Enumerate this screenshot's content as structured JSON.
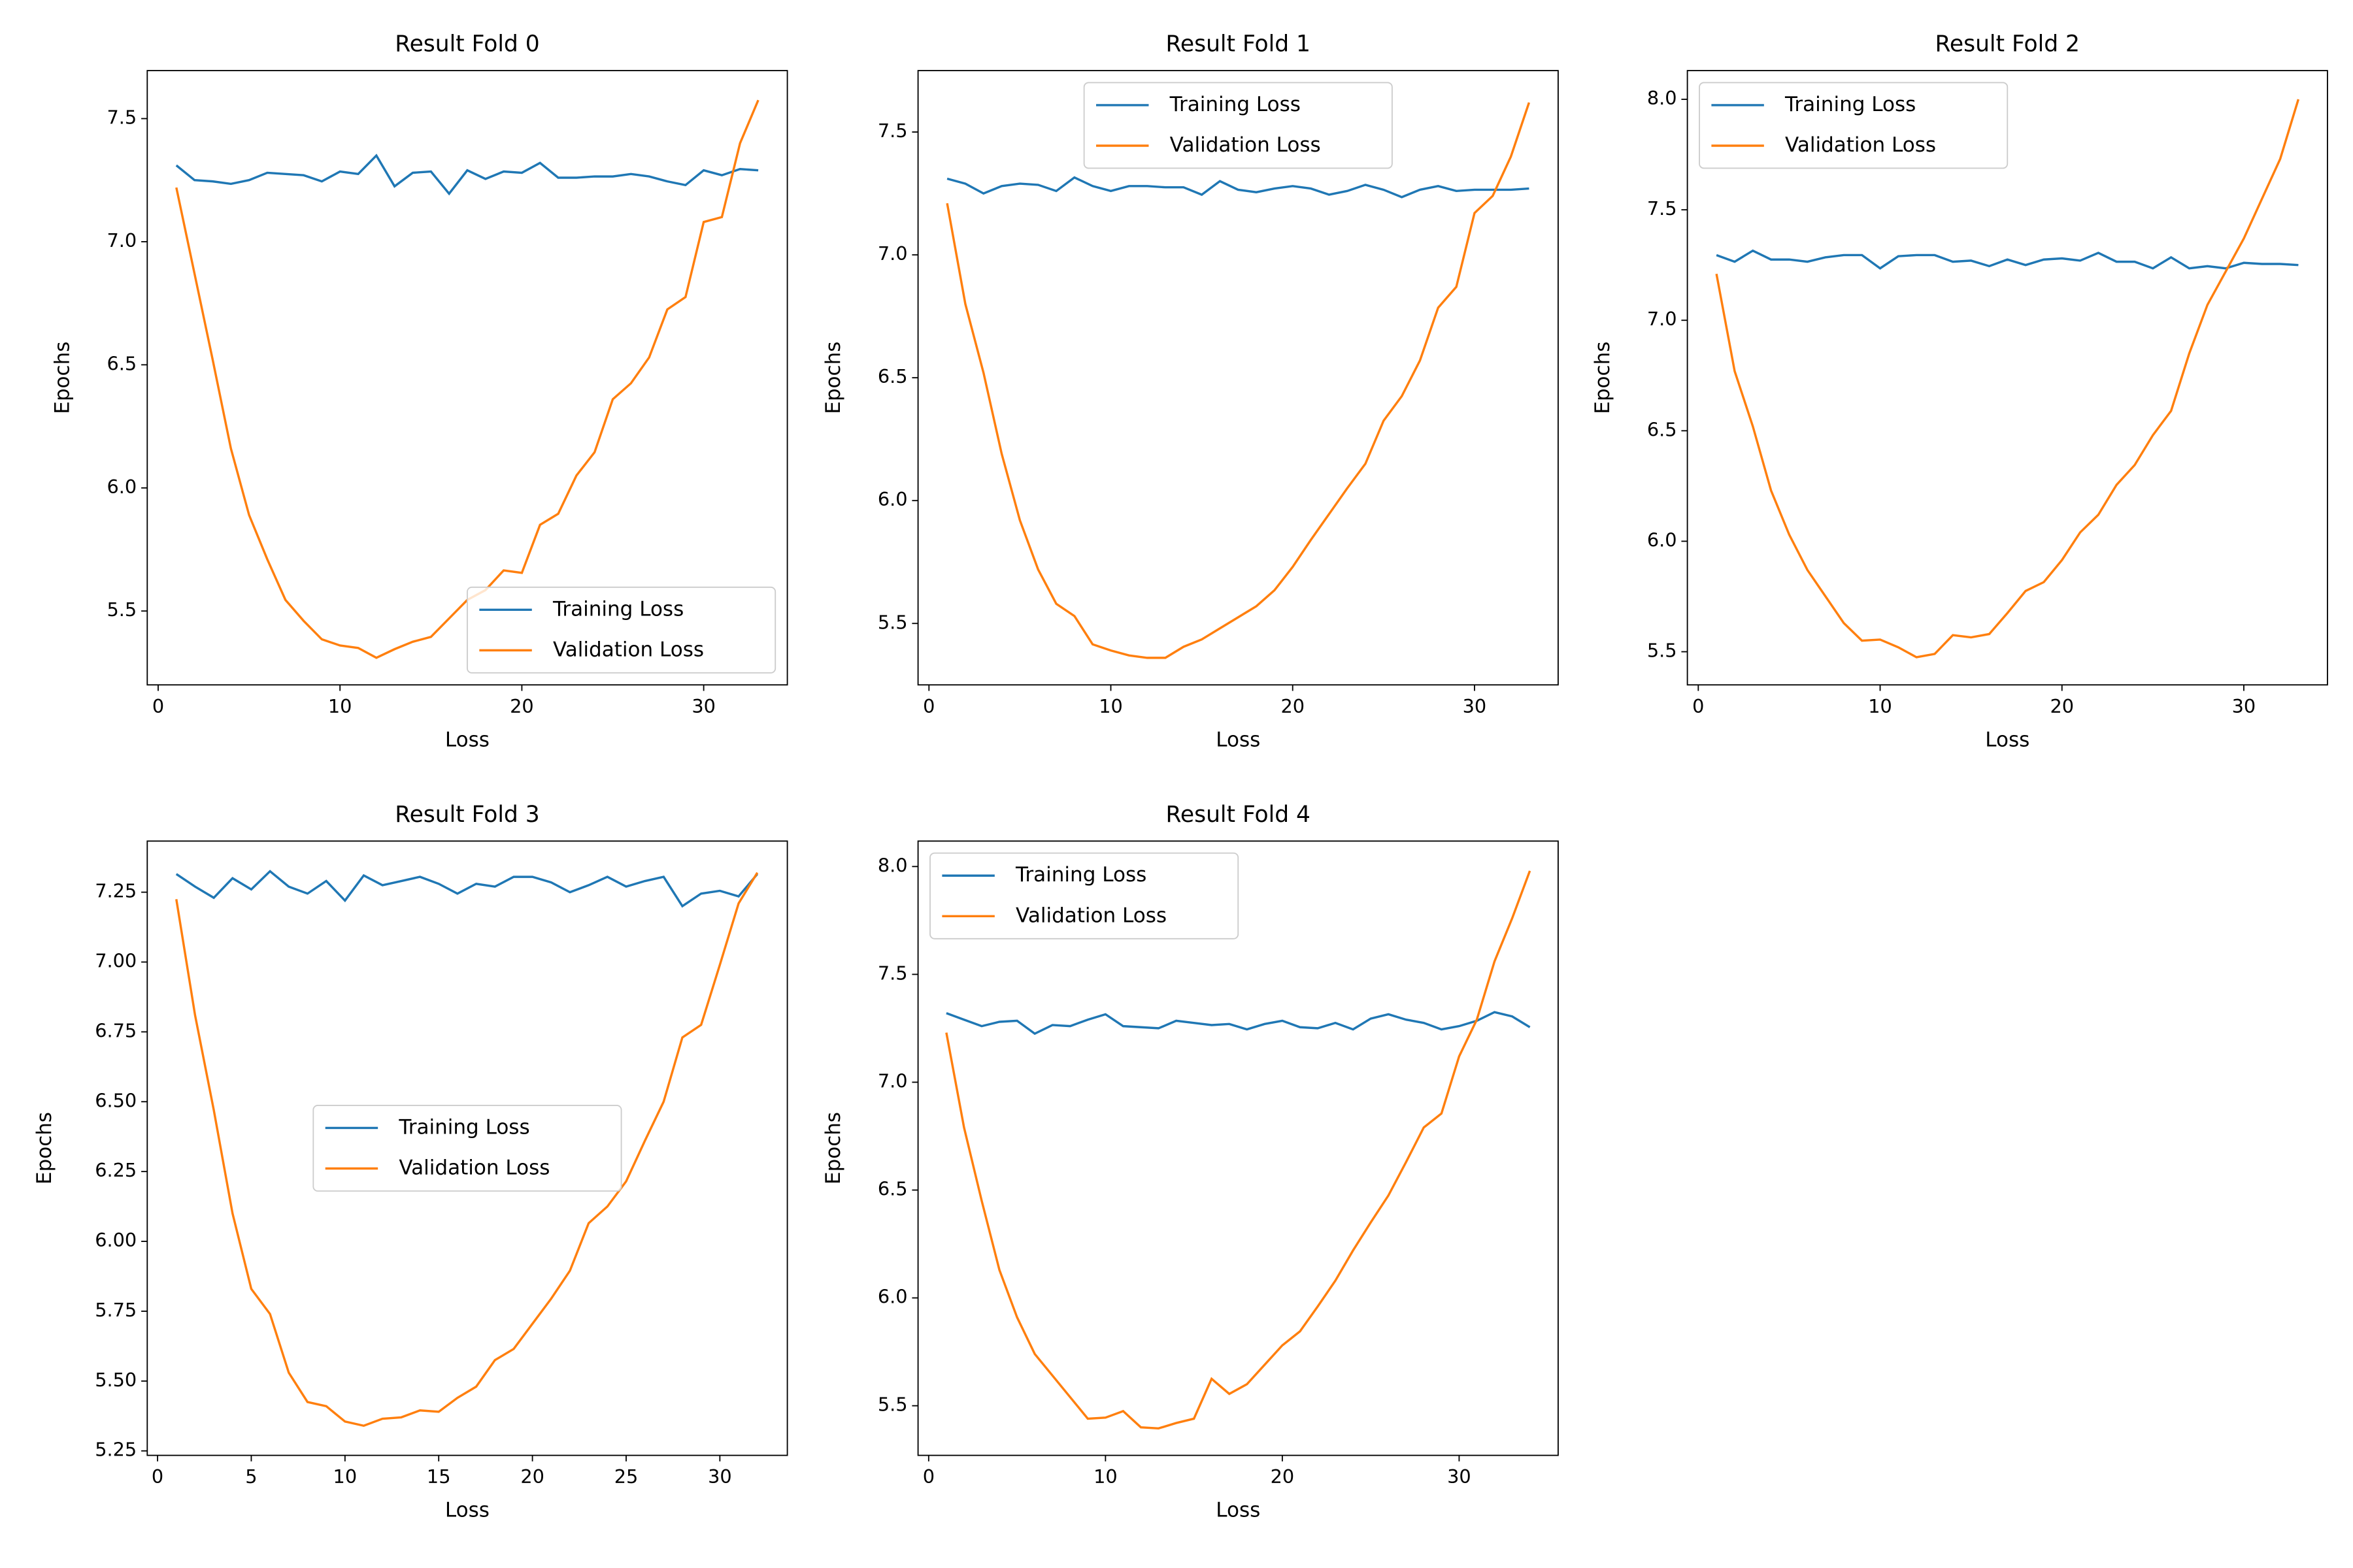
{
  "chart_data": [
    {
      "type": "line",
      "title": "Result Fold 0",
      "xlabel": "Loss",
      "ylabel": "Epochs",
      "legend": "lower right",
      "x": [
        1,
        2,
        3,
        4,
        5,
        6,
        7,
        8,
        9,
        10,
        11,
        12,
        13,
        14,
        15,
        16,
        17,
        18,
        19,
        20,
        21,
        22,
        23,
        24,
        25,
        26,
        27,
        28,
        29,
        30,
        31,
        32,
        33
      ],
      "series": [
        {
          "name": "Training Loss",
          "color": "#1f77b4",
          "values": [
            7.31,
            7.25,
            7.245,
            7.235,
            7.25,
            7.28,
            7.275,
            7.27,
            7.245,
            7.285,
            7.275,
            7.35,
            7.225,
            7.28,
            7.285,
            7.195,
            7.29,
            7.255,
            7.285,
            7.28,
            7.32,
            7.26,
            7.26,
            7.265,
            7.265,
            7.275,
            7.265,
            7.245,
            7.23,
            7.29,
            7.27,
            7.295,
            7.29
          ]
        },
        {
          "name": "Validation Loss",
          "color": "#ff7f0e",
          "values": [
            7.22,
            6.87,
            6.52,
            6.16,
            5.89,
            5.71,
            5.545,
            5.46,
            5.385,
            5.36,
            5.35,
            5.31,
            5.345,
            5.375,
            5.395,
            5.47,
            5.545,
            5.585,
            5.665,
            5.655,
            5.85,
            5.895,
            6.05,
            6.145,
            6.36,
            6.425,
            6.53,
            6.725,
            6.775,
            7.08,
            7.1,
            7.4,
            7.575
          ]
        }
      ],
      "xlim": [
        -0.6,
        34.6
      ],
      "ylim": [
        5.2,
        7.695
      ],
      "xticks": [
        0,
        10,
        20,
        30
      ],
      "yticks": [
        5.5,
        {
          "value": 6,
          "label": "6.0"
        },
        6.5,
        {
          "value": 7,
          "label": "7.0"
        },
        7.5
      ]
    },
    {
      "type": "line",
      "title": "Result Fold 1",
      "xlabel": "Loss",
      "ylabel": "Epochs",
      "legend": "upper center",
      "x": [
        1,
        2,
        3,
        4,
        5,
        6,
        7,
        8,
        9,
        10,
        11,
        12,
        13,
        14,
        15,
        16,
        17,
        18,
        19,
        20,
        21,
        22,
        23,
        24,
        25,
        26,
        27,
        28,
        29,
        30,
        31,
        32,
        33
      ],
      "series": [
        {
          "name": "Training Loss",
          "color": "#1f77b4",
          "values": [
            7.31,
            7.29,
            7.25,
            7.28,
            7.29,
            7.285,
            7.26,
            7.315,
            7.28,
            7.26,
            7.28,
            7.28,
            7.275,
            7.275,
            7.245,
            7.3,
            7.265,
            7.255,
            7.27,
            7.28,
            7.27,
            7.245,
            7.26,
            7.285,
            7.265,
            7.235,
            7.265,
            7.28,
            7.26,
            7.265,
            7.265,
            7.265,
            7.27
          ]
        },
        {
          "name": "Validation Loss",
          "color": "#ff7f0e",
          "values": [
            7.21,
            6.8,
            6.52,
            6.19,
            5.92,
            5.72,
            5.58,
            5.53,
            5.415,
            5.39,
            5.37,
            5.36,
            5.36,
            5.405,
            5.435,
            5.48,
            5.525,
            5.57,
            5.635,
            5.73,
            5.84,
            5.945,
            6.05,
            6.15,
            6.325,
            6.425,
            6.57,
            6.785,
            6.87,
            7.17,
            7.24,
            7.4,
            7.62
          ]
        }
      ],
      "xlim": [
        -0.6,
        34.6
      ],
      "ylim": [
        5.25,
        7.75
      ],
      "xticks": [
        0,
        10,
        20,
        30
      ],
      "yticks": [
        5.5,
        {
          "value": 6,
          "label": "6.0"
        },
        6.5,
        {
          "value": 7,
          "label": "7.0"
        },
        7.5
      ]
    },
    {
      "type": "line",
      "title": "Result Fold 2",
      "xlabel": "Loss",
      "ylabel": "Epochs",
      "legend": "upper left",
      "x": [
        1,
        2,
        3,
        4,
        5,
        6,
        7,
        8,
        9,
        10,
        11,
        12,
        13,
        14,
        15,
        16,
        17,
        18,
        19,
        20,
        21,
        22,
        23,
        24,
        25,
        26,
        27,
        28,
        29,
        30,
        31,
        32,
        33
      ],
      "series": [
        {
          "name": "Training Loss",
          "color": "#1f77b4",
          "values": [
            7.295,
            7.265,
            7.315,
            7.275,
            7.275,
            7.265,
            7.285,
            7.295,
            7.295,
            7.235,
            7.29,
            7.295,
            7.295,
            7.265,
            7.27,
            7.245,
            7.275,
            7.25,
            7.275,
            7.28,
            7.27,
            7.305,
            7.265,
            7.265,
            7.235,
            7.285,
            7.235,
            7.245,
            7.235,
            7.26,
            7.255,
            7.255,
            7.25
          ]
        },
        {
          "name": "Validation Loss",
          "color": "#ff7f0e",
          "values": [
            7.21,
            6.77,
            6.52,
            6.23,
            6.03,
            5.87,
            5.75,
            5.63,
            5.55,
            5.555,
            5.52,
            5.475,
            5.49,
            5.575,
            5.565,
            5.58,
            5.675,
            5.775,
            5.815,
            5.915,
            6.04,
            6.12,
            6.255,
            6.345,
            6.48,
            6.59,
            6.85,
            7.07,
            7.22,
            7.37,
            7.55,
            7.73,
            8.0
          ]
        }
      ],
      "xlim": [
        -0.6,
        34.6
      ],
      "ylim": [
        5.35,
        8.13
      ],
      "xticks": [
        0,
        10,
        20,
        30
      ],
      "yticks": [
        5.5,
        {
          "value": 6,
          "label": "6.0"
        },
        6.5,
        {
          "value": 7,
          "label": "7.0"
        },
        7.5,
        {
          "value": 8,
          "label": "8.0"
        }
      ]
    },
    {
      "type": "line",
      "title": "Result Fold 3",
      "xlabel": "Loss",
      "ylabel": "Epochs",
      "legend": "center",
      "x": [
        1,
        2,
        3,
        4,
        5,
        6,
        7,
        8,
        9,
        10,
        11,
        12,
        13,
        14,
        15,
        16,
        17,
        18,
        19,
        20,
        21,
        22,
        23,
        24,
        25,
        26,
        27,
        28,
        29,
        30,
        31,
        32
      ],
      "series": [
        {
          "name": "Training Loss",
          "color": "#1f77b4",
          "values": [
            7.315,
            7.27,
            7.23,
            7.3,
            7.26,
            7.325,
            7.27,
            7.245,
            7.29,
            7.22,
            7.31,
            7.275,
            7.29,
            7.305,
            7.28,
            7.245,
            7.28,
            7.27,
            7.305,
            7.305,
            7.285,
            7.25,
            7.275,
            7.305,
            7.27,
            7.29,
            7.305,
            7.2,
            7.245,
            7.255,
            7.235,
            7.315
          ]
        },
        {
          "name": "Validation Loss",
          "color": "#ff7f0e",
          "values": [
            7.225,
            6.81,
            6.47,
            6.1,
            5.83,
            5.74,
            5.53,
            5.425,
            5.41,
            5.355,
            5.34,
            5.365,
            5.37,
            5.395,
            5.39,
            5.44,
            5.48,
            5.575,
            5.615,
            5.705,
            5.795,
            5.895,
            6.065,
            6.125,
            6.215,
            6.36,
            6.5,
            6.73,
            6.775,
            6.99,
            7.21,
            7.32
          ]
        }
      ],
      "xlim": [
        -0.55,
        33.6
      ],
      "ylim": [
        5.234,
        7.433
      ],
      "xticks": [
        0,
        5,
        10,
        15,
        20,
        25,
        30
      ],
      "yticks": [
        5.25,
        {
          "value": 5.5,
          "label": "5.50"
        },
        5.75,
        {
          "value": 6,
          "label": "6.00"
        },
        6.25,
        {
          "value": 6.5,
          "label": "6.50"
        },
        6.75,
        {
          "value": 7,
          "label": "7.00"
        },
        7.25
      ]
    },
    {
      "type": "line",
      "title": "Result Fold 4",
      "xlabel": "Loss",
      "ylabel": "Epochs",
      "legend": "upper left",
      "x": [
        1,
        2,
        3,
        4,
        5,
        6,
        7,
        8,
        9,
        10,
        11,
        12,
        13,
        14,
        15,
        16,
        17,
        18,
        19,
        20,
        21,
        22,
        23,
        24,
        25,
        26,
        27,
        28,
        29,
        30,
        31,
        32,
        33,
        34
      ],
      "series": [
        {
          "name": "Training Loss",
          "color": "#1f77b4",
          "values": [
            7.32,
            7.29,
            7.26,
            7.28,
            7.285,
            7.225,
            7.265,
            7.26,
            7.29,
            7.315,
            7.26,
            7.255,
            7.25,
            7.285,
            7.275,
            7.265,
            7.27,
            7.245,
            7.27,
            7.285,
            7.255,
            7.25,
            7.275,
            7.245,
            7.295,
            7.315,
            7.29,
            7.275,
            7.245,
            7.26,
            7.285,
            7.325,
            7.305,
            7.255
          ]
        },
        {
          "name": "Validation Loss",
          "color": "#ff7f0e",
          "values": [
            7.23,
            6.79,
            6.45,
            6.13,
            5.91,
            5.74,
            5.64,
            5.54,
            5.44,
            5.445,
            5.475,
            5.4,
            5.395,
            5.42,
            5.44,
            5.625,
            5.555,
            5.6,
            5.69,
            5.78,
            5.845,
            5.96,
            6.08,
            6.22,
            6.35,
            6.475,
            6.63,
            6.79,
            6.855,
            7.12,
            7.29,
            7.56,
            7.76,
            7.98
          ]
        }
      ],
      "xlim": [
        -0.6,
        35.6
      ],
      "ylim": [
        5.27,
        8.118
      ],
      "xticks": [
        0,
        10,
        20,
        30
      ],
      "yticks": [
        5.5,
        {
          "value": 6,
          "label": "6.0"
        },
        6.5,
        {
          "value": 7,
          "label": "7.0"
        },
        7.5,
        {
          "value": 8,
          "label": "8.0"
        }
      ]
    }
  ]
}
